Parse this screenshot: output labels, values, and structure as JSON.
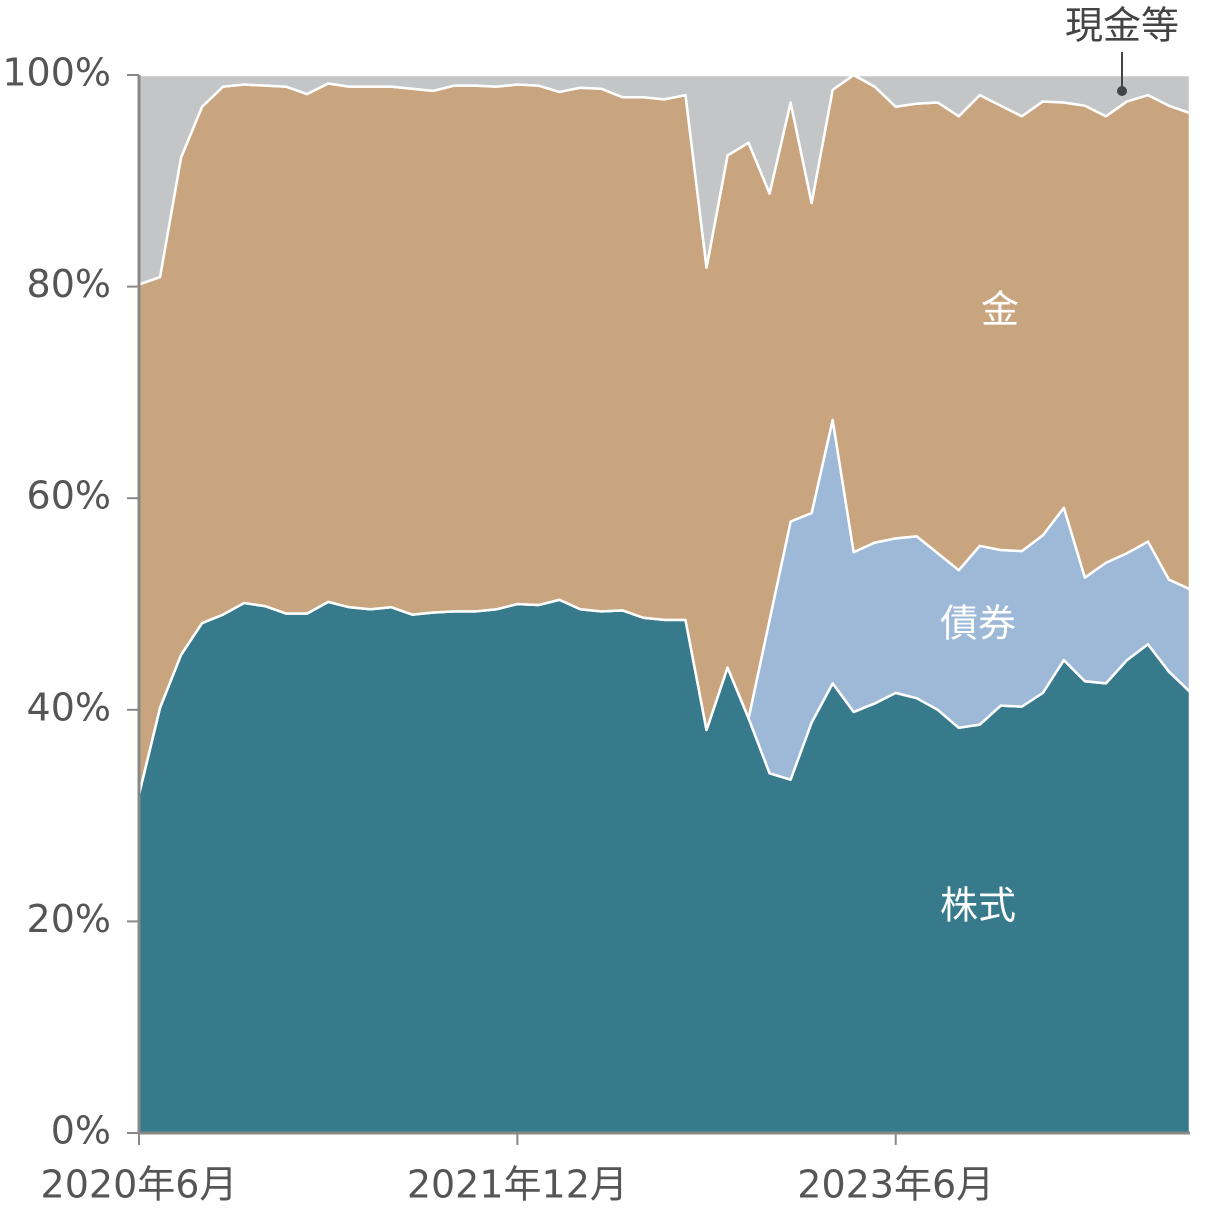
{
  "chart_data": {
    "type": "stacked-area",
    "categories": [
      "2020年6月",
      null,
      null,
      null,
      null,
      null,
      null,
      null,
      null,
      null,
      null,
      null,
      null,
      null,
      null,
      null,
      null,
      null,
      "2021年12月",
      null,
      null,
      null,
      null,
      null,
      null,
      null,
      null,
      null,
      null,
      null,
      null,
      null,
      null,
      null,
      null,
      null,
      "2023年6月",
      null,
      null,
      null,
      null,
      null,
      null,
      null,
      null,
      null,
      null,
      null,
      null,
      null,
      null
    ],
    "series": [
      {
        "name": "株式",
        "color": "#367a8c",
        "values": [
          32,
          40.2,
          45.2,
          48.2,
          49,
          50.1,
          49.8,
          49.1,
          49.1,
          50.2,
          49.7,
          49.5,
          49.7,
          49,
          49.2,
          49.3,
          49.3,
          49.5,
          50,
          49.9,
          50.4,
          49.5,
          49.3,
          49.4,
          48.7,
          48.5,
          48.5,
          38.1,
          44,
          39.2,
          34,
          33.4,
          38.8,
          42.5,
          39.8,
          40.6,
          41.6,
          41.1,
          40,
          38.3,
          38.6,
          40.4,
          40.3,
          41.6,
          44.7,
          42.7,
          42.5,
          44.7,
          46.2,
          43.6,
          41.7
        ]
      },
      {
        "name": "債券",
        "color": "#9eb9d8",
        "values": [
          0,
          0,
          0,
          0,
          0,
          0,
          0,
          0,
          0,
          0,
          0,
          0,
          0,
          0,
          0,
          0,
          0,
          0,
          0,
          0,
          0,
          0,
          0,
          0,
          0,
          0,
          0,
          0,
          0,
          0,
          14.5,
          24.4,
          19.8,
          24.9,
          15.1,
          15.2,
          14.6,
          15.3,
          14.8,
          14.9,
          16.9,
          14.7,
          14.7,
          14.9,
          14.4,
          9.8,
          11.4,
          10.1,
          9.7,
          8.7,
          9.7
        ]
      },
      {
        "name": "金",
        "color": "#c8a57e",
        "values": [
          48.2,
          40.7,
          47,
          48.8,
          49.9,
          49,
          49.2,
          49.8,
          49.1,
          49,
          49.2,
          49.4,
          49.2,
          49.7,
          49.3,
          49.7,
          49.7,
          49.4,
          49.1,
          49.1,
          48,
          49.3,
          49.4,
          48.5,
          49.2,
          49.2,
          49.6,
          43.7,
          48.4,
          54.4,
          40.3,
          39.6,
          29.3,
          31.2,
          45.1,
          43.1,
          40.8,
          40.9,
          42.6,
          42.9,
          42.6,
          42,
          41.1,
          41,
          38.3,
          44.6,
          42.2,
          42.7,
          42.2,
          44.8,
          45
        ]
      },
      {
        "name": "現金等",
        "color": "#c4c5c7",
        "values": [
          19.8,
          19.1,
          7.8,
          3,
          1.1,
          0.9,
          1,
          1.1,
          1.8,
          0.8,
          1.1,
          1.1,
          1.1,
          1.3,
          1.5,
          1,
          1,
          1.1,
          0.9,
          1,
          1.6,
          1.2,
          1.3,
          2.1,
          2.1,
          2.3,
          1.9,
          18.2,
          7.6,
          6.4,
          11.2,
          2.6,
          12.1,
          1.4,
          0,
          1.1,
          3,
          2.7,
          2.6,
          3.9,
          1.9,
          2.9,
          3.9,
          2.5,
          2.6,
          2.9,
          3.9,
          2.5,
          1.9,
          2.9,
          3.6
        ]
      }
    ],
    "ylim": [
      0,
      100
    ],
    "yticks": [
      {
        "value": 0,
        "label": "0%"
      },
      {
        "value": 20,
        "label": "20%"
      },
      {
        "value": 40,
        "label": "40%"
      },
      {
        "value": 60,
        "label": "60%"
      },
      {
        "value": 80,
        "label": "80%"
      },
      {
        "value": 100,
        "label": "100%"
      }
    ]
  }
}
